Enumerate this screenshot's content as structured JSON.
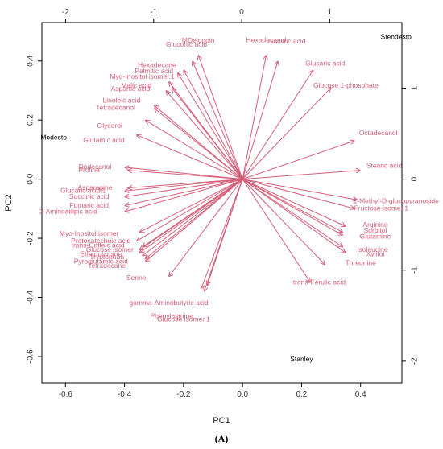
{
  "caption": "(A)",
  "chart_data": {
    "type": "biplot",
    "title": "",
    "xlabel": "PC1",
    "ylabel": "PC2",
    "xlim": [
      -0.68,
      0.54
    ],
    "ylim": [
      -0.69,
      0.53
    ],
    "xticks": [
      -0.6,
      -0.4,
      -0.2,
      0.0,
      0.2,
      0.4
    ],
    "yticks": [
      -0.6,
      -0.4,
      -0.2,
      0.0,
      0.2,
      0.4
    ],
    "top_xlim": [
      -2.27,
      1.82
    ],
    "top_xticks": [
      -2,
      -1,
      0,
      1
    ],
    "right_ylim": [
      -2.24,
      1.72
    ],
    "right_yticks": [
      -2,
      -1,
      0,
      1
    ],
    "colors": {
      "arrows": "#d4607a",
      "observations": "#000000",
      "frame": "#000000"
    },
    "observations": [
      {
        "name": "Stendesto",
        "x": 0.52,
        "y": 0.48
      },
      {
        "name": "Modesto",
        "x": -0.64,
        "y": 0.14
      },
      {
        "name": "Stanley",
        "x": 0.2,
        "y": -0.61
      }
    ],
    "variables": [
      {
        "name": "Hexadecanol",
        "x": 0.08,
        "y": 0.42,
        "lx": 0.08,
        "ly": 0.47
      },
      {
        "name": "Isocitric acid",
        "x": 0.12,
        "y": 0.4,
        "lx": 0.15,
        "ly": 0.465
      },
      {
        "name": "MDelogoin",
        "x": -0.15,
        "y": 0.42,
        "lx": -0.15,
        "ly": 0.468
      },
      {
        "name": "Gluconic acid",
        "x": -0.17,
        "y": 0.4,
        "lx": -0.19,
        "ly": 0.455
      },
      {
        "name": "Glucaric acid",
        "x": 0.24,
        "y": 0.37,
        "lx": 0.28,
        "ly": 0.39
      },
      {
        "name": "Glucose 1-phosphate",
        "x": 0.3,
        "y": 0.31,
        "lx": 0.35,
        "ly": 0.315
      },
      {
        "name": "Hexadecane",
        "x": -0.2,
        "y": 0.37,
        "lx": -0.29,
        "ly": 0.385
      },
      {
        "name": "Palmitic acid",
        "x": -0.22,
        "y": 0.36,
        "lx": -0.3,
        "ly": 0.365
      },
      {
        "name": "Myo-Inositol isomer.1",
        "x": -0.25,
        "y": 0.33,
        "lx": -0.34,
        "ly": 0.345
      },
      {
        "name": "Malic acid",
        "x": -0.24,
        "y": 0.31,
        "lx": -0.36,
        "ly": 0.315
      },
      {
        "name": "Aspartic acid",
        "x": -0.26,
        "y": 0.3,
        "lx": -0.38,
        "ly": 0.305
      },
      {
        "name": "Linoleic acid",
        "x": -0.3,
        "y": 0.25,
        "lx": -0.41,
        "ly": 0.265
      },
      {
        "name": "Tetradecanol",
        "x": -0.3,
        "y": 0.24,
        "lx": -0.43,
        "ly": 0.24
      },
      {
        "name": "Glycerol",
        "x": -0.33,
        "y": 0.2,
        "lx": -0.45,
        "ly": 0.18
      },
      {
        "name": "Glutamic acid",
        "x": -0.36,
        "y": 0.15,
        "lx": -0.47,
        "ly": 0.13
      },
      {
        "name": "Octadecanol",
        "x": 0.38,
        "y": 0.13,
        "lx": 0.46,
        "ly": 0.155
      },
      {
        "name": "Dodecanol",
        "x": -0.4,
        "y": 0.04,
        "lx": -0.5,
        "ly": 0.04
      },
      {
        "name": "Proline",
        "x": -0.39,
        "y": 0.03,
        "lx": -0.52,
        "ly": 0.03
      },
      {
        "name": "Stearic acid",
        "x": 0.4,
        "y": 0.03,
        "lx": 0.48,
        "ly": 0.045
      },
      {
        "name": "Asparagine",
        "x": -0.39,
        "y": -0.03,
        "lx": -0.5,
        "ly": -0.03
      },
      {
        "name": "Glucaric acid.1",
        "x": -0.4,
        "y": -0.04,
        "lx": -0.54,
        "ly": -0.04
      },
      {
        "name": "Succinic acid",
        "x": -0.4,
        "y": -0.06,
        "lx": -0.52,
        "ly": -0.06
      },
      {
        "name": "Fumaric acid",
        "x": -0.4,
        "y": -0.09,
        "lx": -0.52,
        "ly": -0.09
      },
      {
        "name": "2-Aminoadipic acid",
        "x": -0.4,
        "y": -0.11,
        "lx": -0.59,
        "ly": -0.11
      },
      {
        "name": "1-Methyl-D-glucopyranoside",
        "x": 0.39,
        "y": -0.07,
        "lx": 0.52,
        "ly": -0.075
      },
      {
        "name": "Fructose isomer.1",
        "x": 0.38,
        "y": -0.1,
        "lx": 0.47,
        "ly": -0.1
      },
      {
        "name": "Arginine",
        "x": 0.35,
        "y": -0.16,
        "lx": 0.45,
        "ly": -0.155
      },
      {
        "name": "Sorbitol",
        "x": 0.34,
        "y": -0.18,
        "lx": 0.45,
        "ly": -0.175
      },
      {
        "name": "Glutamine",
        "x": 0.34,
        "y": -0.19,
        "lx": 0.45,
        "ly": -0.195
      },
      {
        "name": "Myo-Inositol isomer",
        "x": -0.35,
        "y": -0.18,
        "lx": -0.52,
        "ly": -0.185
      },
      {
        "name": "Protocatechuic acid",
        "x": -0.36,
        "y": -0.21,
        "lx": -0.48,
        "ly": -0.21
      },
      {
        "name": "trans-Caffeic acid",
        "x": -0.34,
        "y": -0.23,
        "lx": -0.49,
        "ly": -0.225
      },
      {
        "name": "Glucose isomer",
        "x": -0.35,
        "y": -0.24,
        "lx": -0.45,
        "ly": -0.24
      },
      {
        "name": "Ethanolamine",
        "x": -0.35,
        "y": -0.25,
        "lx": -0.48,
        "ly": -0.255
      },
      {
        "name": "Tryptophan",
        "x": -0.34,
        "y": -0.26,
        "lx": -0.46,
        "ly": -0.265
      },
      {
        "name": "Pyroglutamic acid",
        "x": -0.33,
        "y": -0.27,
        "lx": -0.48,
        "ly": -0.28
      },
      {
        "name": "Tetradecane",
        "x": -0.33,
        "y": -0.28,
        "lx": -0.46,
        "ly": -0.295
      },
      {
        "name": "Isoleucine",
        "x": 0.34,
        "y": -0.23,
        "lx": 0.44,
        "ly": -0.24
      },
      {
        "name": "Xylitol",
        "x": 0.35,
        "y": -0.25,
        "lx": 0.45,
        "ly": -0.255
      },
      {
        "name": "Threonine",
        "x": 0.28,
        "y": -0.29,
        "lx": 0.4,
        "ly": -0.285
      },
      {
        "name": "Serine",
        "x": -0.25,
        "y": -0.33,
        "lx": -0.36,
        "ly": -0.335
      },
      {
        "name": "trans-Ferulic acid",
        "x": 0.23,
        "y": -0.35,
        "lx": 0.26,
        "ly": -0.35
      },
      {
        "name": "gamma-Aminobutyric acid",
        "x": -0.14,
        "y": -0.37,
        "lx": -0.25,
        "ly": -0.42
      },
      {
        "name": "Phenylalanine",
        "x": -0.12,
        "y": -0.36,
        "lx": -0.24,
        "ly": -0.465
      },
      {
        "name": "Glucose isomer.1",
        "x": -0.13,
        "y": -0.38,
        "lx": -0.2,
        "ly": -0.475
      }
    ]
  }
}
